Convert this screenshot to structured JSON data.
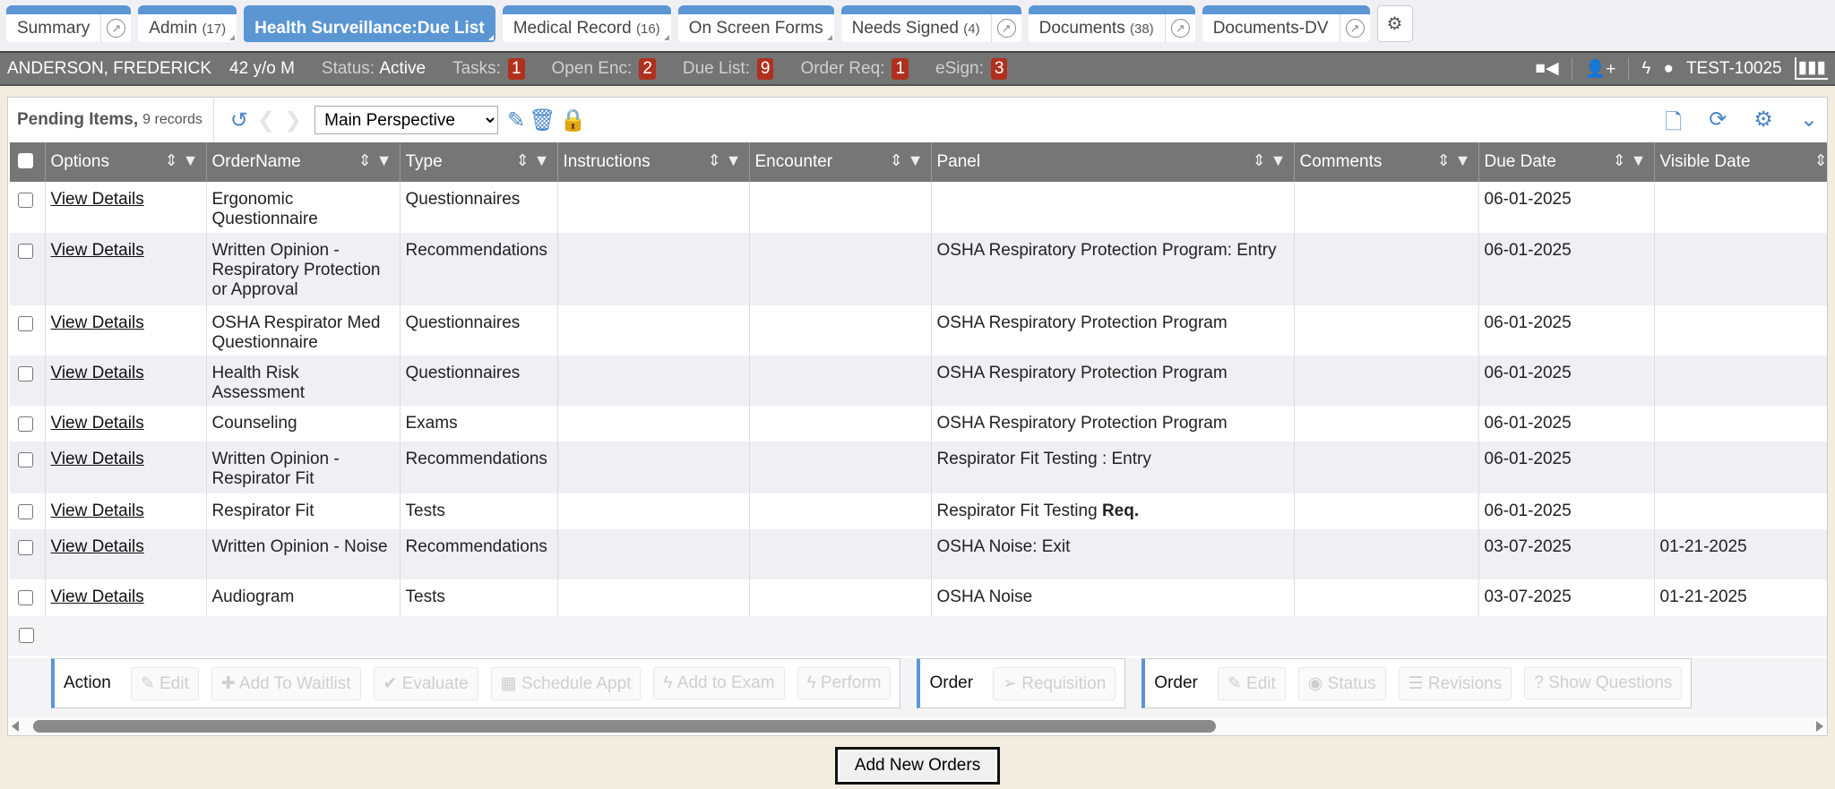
{
  "tabs": [
    {
      "label": "Summary",
      "count": "",
      "ext": true,
      "active": false
    },
    {
      "label": "Admin",
      "count": "(17)",
      "ext": false,
      "active": false
    },
    {
      "label": "Health Surveillance:Due List",
      "count": "",
      "ext": false,
      "active": true
    },
    {
      "label": "Medical Record",
      "count": "(16)",
      "ext": false,
      "active": false
    },
    {
      "label": "On Screen Forms",
      "count": "",
      "ext": false,
      "active": false
    },
    {
      "label": "Needs Signed",
      "count": "(4)",
      "ext": true,
      "active": false
    },
    {
      "label": "Documents",
      "count": "(38)",
      "ext": true,
      "active": false
    },
    {
      "label": "Documents-DV",
      "count": "",
      "ext": true,
      "active": false
    }
  ],
  "patient": {
    "name": "ANDERSON, FREDERICK",
    "age": "42 y/o M",
    "status_label": "Status:",
    "status": "Active",
    "tasks_label": "Tasks:",
    "tasks": "1",
    "openenc_label": "Open Enc:",
    "openenc": "2",
    "duelist_label": "Due List:",
    "duelist": "9",
    "orderreq_label": "Order Req:",
    "orderreq": "1",
    "esign_label": "eSign:",
    "esign": "3",
    "user": "TEST-10025"
  },
  "panel": {
    "title": "Pending Items,",
    "records": "9 records",
    "perspective": "Main Perspective"
  },
  "columns": [
    "Options",
    "OrderName",
    "Type",
    "Instructions",
    "Encounter",
    "Panel",
    "Comments",
    "Due Date",
    "Visible Date"
  ],
  "rows": [
    {
      "options": "View Details",
      "order": "Ergonomic Questionnaire",
      "type": "Questionnaires",
      "panel": "",
      "req": "",
      "due": "06-01-2025",
      "visible": ""
    },
    {
      "options": "View Details",
      "order": "Written Opinion - Respiratory Protection or Approval",
      "type": "Recommendations",
      "panel": "OSHA Respiratory Protection Program: Entry",
      "req": "",
      "due": "06-01-2025",
      "visible": ""
    },
    {
      "options": "View Details",
      "order": "OSHA Respirator Med Questionnaire",
      "type": "Questionnaires",
      "panel": "OSHA Respiratory Protection Program",
      "req": "",
      "due": "06-01-2025",
      "visible": ""
    },
    {
      "options": "View Details",
      "order": "Health Risk Assessment",
      "type": "Questionnaires",
      "panel": "OSHA Respiratory Protection Program",
      "req": "",
      "due": "06-01-2025",
      "visible": ""
    },
    {
      "options": "View Details",
      "order": "Counseling",
      "type": "Exams",
      "panel": "OSHA Respiratory Protection Program",
      "req": "",
      "due": "06-01-2025",
      "visible": ""
    },
    {
      "options": "View Details",
      "order": "Written Opinion - Respirator Fit",
      "type": "Recommendations",
      "panel": "Respirator Fit Testing : Entry",
      "req": "",
      "due": "06-01-2025",
      "visible": ""
    },
    {
      "options": "View Details",
      "order": "Respirator Fit",
      "type": "Tests",
      "panel": "Respirator Fit Testing",
      "req": "Req.",
      "due": "06-01-2025",
      "visible": ""
    },
    {
      "options": "View Details",
      "order": "Written Opinion - Noise",
      "type": "Recommendations",
      "panel": "OSHA Noise: Exit",
      "req": "",
      "due": "03-07-2025",
      "visible": "01-21-2025"
    },
    {
      "options": "View Details",
      "order": "Audiogram",
      "type": "Tests",
      "panel": "OSHA Noise",
      "req": "",
      "due": "03-07-2025",
      "visible": "01-21-2025"
    }
  ],
  "action_groups": [
    {
      "label": "Action",
      "buttons": [
        "✎ Edit",
        "✚ Add To Waitlist",
        "✔ Evaluate",
        "▦ Schedule Appt",
        "ϟ Add to Exam",
        "ϟ Perform"
      ]
    },
    {
      "label": "Order",
      "buttons": [
        "➢ Requisition"
      ]
    },
    {
      "label": "Order",
      "buttons": [
        "✎ Edit",
        "◉ Status",
        "☰ Revisions",
        "? Show Questions"
      ]
    }
  ],
  "add_button": "Add New Orders",
  "colors": {
    "accent": "#5b96d3",
    "badge": "#b0301e",
    "header": "#767676"
  }
}
